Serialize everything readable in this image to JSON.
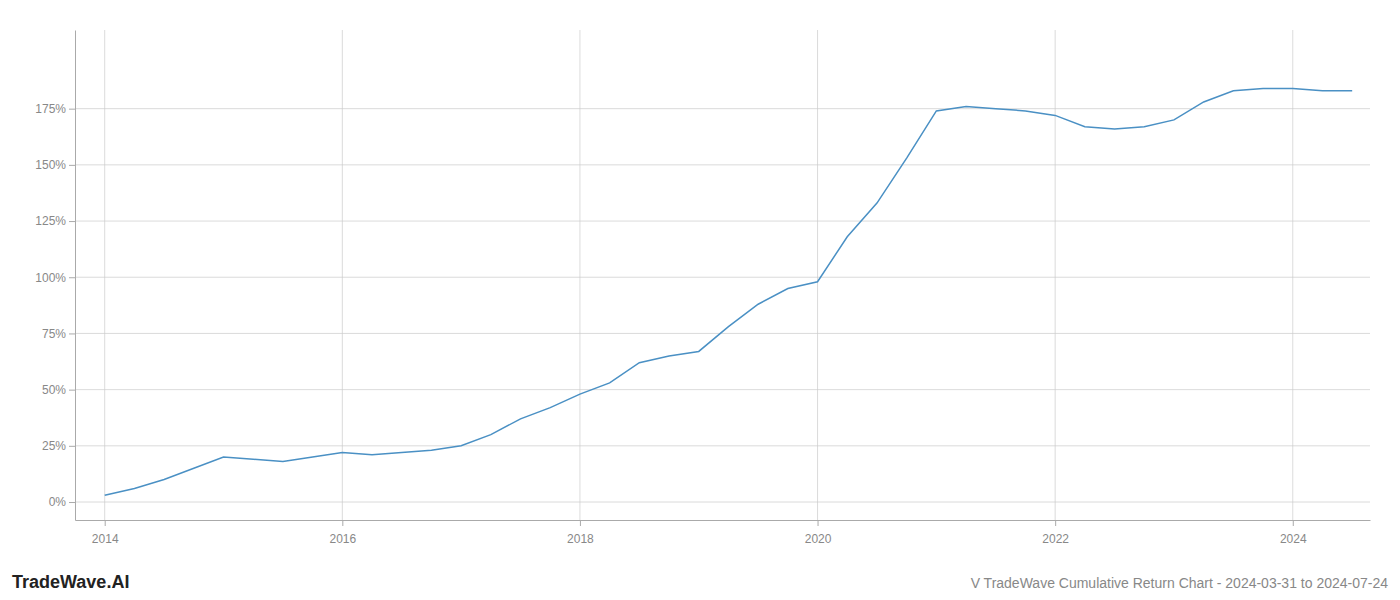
{
  "chart_data": {
    "type": "line",
    "title": "V TradeWave Cumulative Return Chart - 2024-03-31 to 2024-07-24",
    "annotations": [
      "TradeWave.AI"
    ],
    "color": "#4a90c4",
    "grid": true,
    "x": [
      2014.0,
      2014.25,
      2014.5,
      2014.75,
      2015.0,
      2015.25,
      2015.5,
      2015.75,
      2016.0,
      2016.25,
      2016.5,
      2016.75,
      2017.0,
      2017.25,
      2017.5,
      2017.75,
      2018.0,
      2018.25,
      2018.5,
      2018.75,
      2019.0,
      2019.25,
      2019.5,
      2019.75,
      2020.0,
      2020.25,
      2020.5,
      2020.75,
      2021.0,
      2021.25,
      2021.5,
      2021.75,
      2022.0,
      2022.25,
      2022.5,
      2022.75,
      2023.0,
      2023.25,
      2023.5,
      2023.75,
      2024.0,
      2024.25,
      2024.5
    ],
    "values": [
      3,
      6,
      10,
      15,
      20,
      19,
      18,
      20,
      22,
      21,
      22,
      23,
      25,
      30,
      37,
      42,
      48,
      53,
      62,
      65,
      67,
      78,
      88,
      95,
      98,
      118,
      133,
      153,
      174,
      176,
      175,
      174,
      172,
      167,
      166,
      167,
      170,
      178,
      183,
      184,
      184,
      183,
      183
    ],
    "xlim": [
      2013.75,
      2024.65
    ],
    "ylim": [
      -8,
      210
    ],
    "xticks": [
      2014,
      2016,
      2018,
      2020,
      2022,
      2024
    ],
    "yticks": [
      {
        "value": 0,
        "label": "0%"
      },
      {
        "value": 25,
        "label": "25%"
      },
      {
        "value": 50,
        "label": "50%"
      },
      {
        "value": 75,
        "label": "75%"
      },
      {
        "value": 100,
        "label": "100%"
      },
      {
        "value": 125,
        "label": "125%"
      },
      {
        "value": 150,
        "label": "150%"
      },
      {
        "value": 175,
        "label": "175%"
      }
    ]
  }
}
